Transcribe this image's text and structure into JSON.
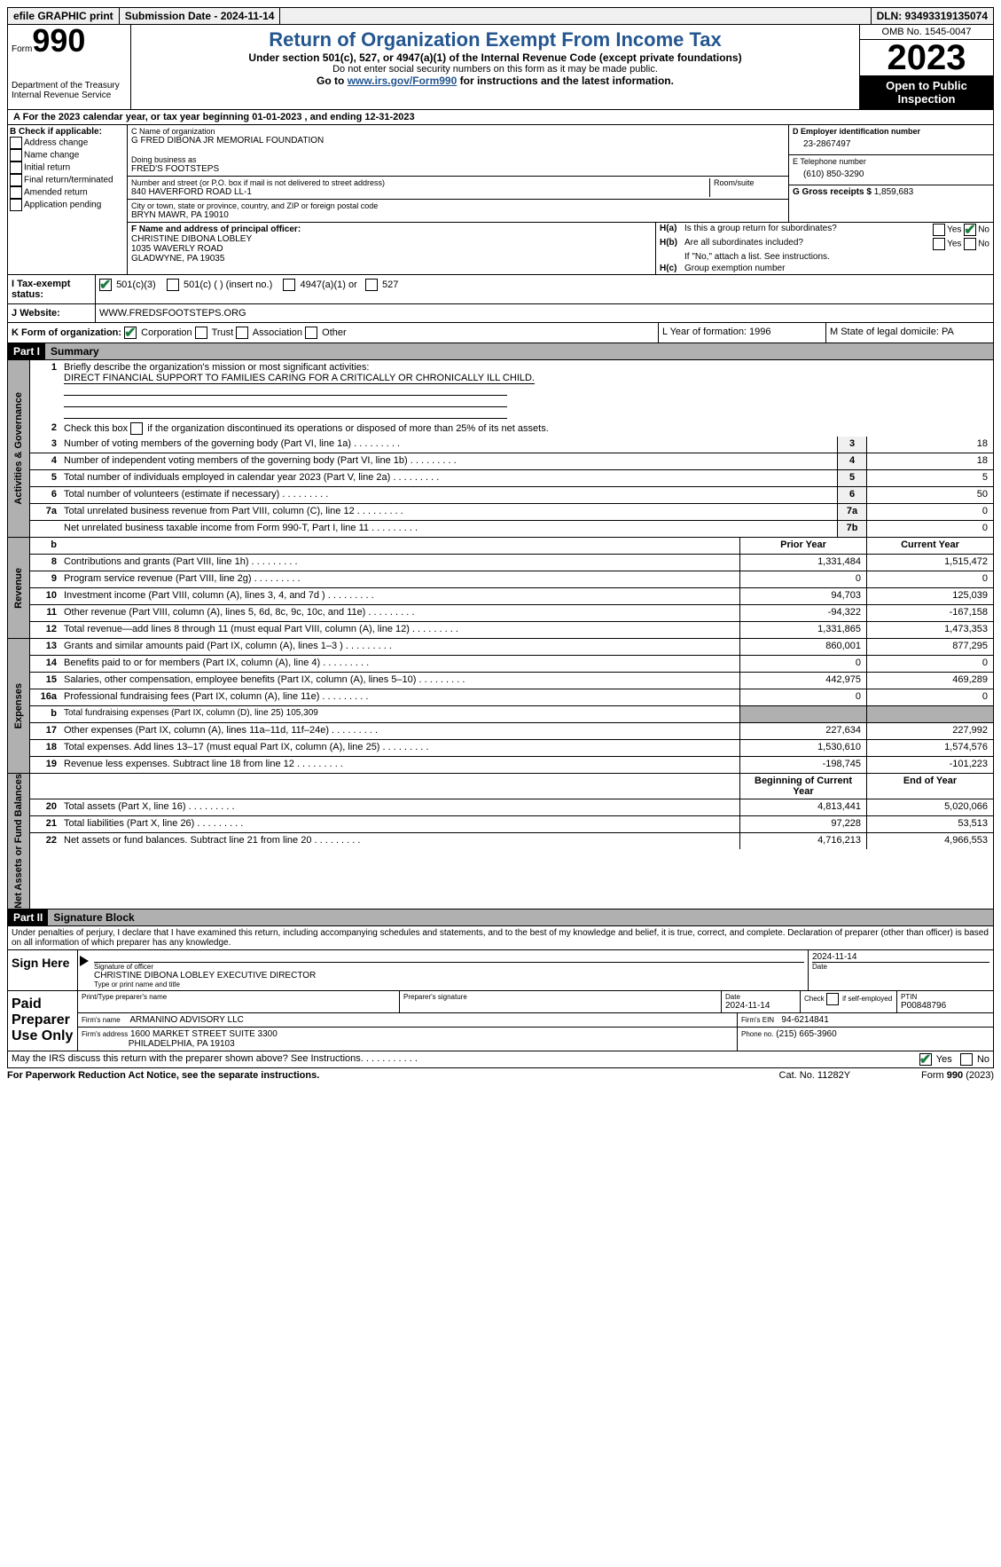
{
  "topbar": {
    "efile": "efile GRAPHIC print",
    "submission_label": "Submission Date - 2024-11-14",
    "dln_label": "DLN: 93493319135074"
  },
  "header": {
    "form_word": "Form",
    "form_number": "990",
    "dept": "Department of the Treasury Internal Revenue Service",
    "title": "Return of Organization Exempt From Income Tax",
    "subtitle": "Under section 501(c), 527, or 4947(a)(1) of the Internal Revenue Code (except private foundations)",
    "public_note": "Do not enter social security numbers on this form as it may be made public.",
    "goto_prefix": "Go to ",
    "goto_link": "www.irs.gov/Form990",
    "goto_suffix": " for instructions and the latest information.",
    "omb": "OMB No. 1545-0047",
    "year": "2023",
    "open": "Open to Public Inspection"
  },
  "line_a": "For the 2023 calendar year, or tax year beginning 01-01-2023   , and ending 12-31-2023",
  "b": {
    "label": "B Check if applicable:",
    "addr": "Address change",
    "name": "Name change",
    "initial": "Initial return",
    "final": "Final return/terminated",
    "amended": "Amended return",
    "app": "Application pending"
  },
  "c": {
    "name_label": "C Name of organization",
    "name": "G FRED DIBONA JR MEMORIAL FOUNDATION",
    "dba_label": "Doing business as",
    "dba": "FRED'S FOOTSTEPS",
    "street_label": "Number and street (or P.O. box if mail is not delivered to street address)",
    "street": "840 HAVERFORD ROAD LL-1",
    "room_label": "Room/suite",
    "city_label": "City or town, state or province, country, and ZIP or foreign postal code",
    "city": "BRYN MAWR, PA  19010"
  },
  "d": {
    "label": "D Employer identification number",
    "value": "23-2867497"
  },
  "e": {
    "label": "E Telephone number",
    "value": "(610) 850-3290"
  },
  "g": {
    "label": "G Gross receipts $",
    "value": "1,859,683"
  },
  "f": {
    "label": "F  Name and address of principal officer:",
    "name": "CHRISTINE DIBONA LOBLEY",
    "addr1": "1035 WAVERLY ROAD",
    "addr2": "GLADWYNE, PA  19035"
  },
  "h": {
    "ha_q": "Is this a group return for subordinates?",
    "hb_q": "Are all subordinates included?",
    "hb_note": "If \"No,\" attach a list. See instructions.",
    "hc_q": "Group exemption number",
    "yes": "Yes",
    "no": "No"
  },
  "i": {
    "label": "Tax-exempt status:",
    "opt1": "501(c)(3)",
    "opt2": "501(c) (  ) (insert no.)",
    "opt3": "4947(a)(1) or",
    "opt4": "527"
  },
  "j": {
    "label": "Website:",
    "value": "WWW.FREDSFOOTSTEPS.ORG"
  },
  "k": {
    "label": "K Form of organization:",
    "corp": "Corporation",
    "trust": "Trust",
    "assoc": "Association",
    "other": "Other"
  },
  "l": {
    "text": "L Year of formation: 1996"
  },
  "m": {
    "text": "M State of legal domicile: PA"
  },
  "part1": {
    "header": "Part I",
    "title": "Summary"
  },
  "governance": {
    "tab": "Activities & Governance",
    "line1_label": "Briefly describe the organization's mission or most significant activities:",
    "line1_value": "DIRECT FINANCIAL SUPPORT TO FAMILIES CARING FOR A CRITICALLY OR CHRONICALLY ILL CHILD.",
    "line2": "Check this box    if the organization discontinued its operations or disposed of more than 25% of its net assets.",
    "rows": [
      {
        "n": "3",
        "d": "Number of voting members of the governing body (Part VI, line 1a)",
        "c": "3",
        "v": "18"
      },
      {
        "n": "4",
        "d": "Number of independent voting members of the governing body (Part VI, line 1b)",
        "c": "4",
        "v": "18"
      },
      {
        "n": "5",
        "d": "Total number of individuals employed in calendar year 2023 (Part V, line 2a)",
        "c": "5",
        "v": "5"
      },
      {
        "n": "6",
        "d": "Total number of volunteers (estimate if necessary)",
        "c": "6",
        "v": "50"
      },
      {
        "n": "7a",
        "d": "Total unrelated business revenue from Part VIII, column (C), line 12",
        "c": "7a",
        "v": "0"
      },
      {
        "n": "",
        "d": "Net unrelated business taxable income from Form 990-T, Part I, line 11",
        "c": "7b",
        "v": "0"
      }
    ]
  },
  "revenue": {
    "tab": "Revenue",
    "hdr_prior": "Prior Year",
    "hdr_current": "Current Year",
    "rows": [
      {
        "n": "8",
        "d": "Contributions and grants (Part VIII, line 1h)",
        "p": "1,331,484",
        "c": "1,515,472"
      },
      {
        "n": "9",
        "d": "Program service revenue (Part VIII, line 2g)",
        "p": "0",
        "c": "0"
      },
      {
        "n": "10",
        "d": "Investment income (Part VIII, column (A), lines 3, 4, and 7d )",
        "p": "94,703",
        "c": "125,039"
      },
      {
        "n": "11",
        "d": "Other revenue (Part VIII, column (A), lines 5, 6d, 8c, 9c, 10c, and 11e)",
        "p": "-94,322",
        "c": "-167,158"
      },
      {
        "n": "12",
        "d": "Total revenue—add lines 8 through 11 (must equal Part VIII, column (A), line 12)",
        "p": "1,331,865",
        "c": "1,473,353"
      }
    ]
  },
  "expenses": {
    "tab": "Expenses",
    "line_b": "Total fundraising expenses (Part IX, column (D), line 25) 105,309",
    "rows": [
      {
        "n": "13",
        "d": "Grants and similar amounts paid (Part IX, column (A), lines 1–3 )",
        "p": "860,001",
        "c": "877,295"
      },
      {
        "n": "14",
        "d": "Benefits paid to or for members (Part IX, column (A), line 4)",
        "p": "0",
        "c": "0"
      },
      {
        "n": "15",
        "d": "Salaries, other compensation, employee benefits (Part IX, column (A), lines 5–10)",
        "p": "442,975",
        "c": "469,289"
      },
      {
        "n": "16a",
        "d": "Professional fundraising fees (Part IX, column (A), line 11e)",
        "p": "0",
        "c": "0"
      },
      {
        "n": "17",
        "d": "Other expenses (Part IX, column (A), lines 11a–11d, 11f–24e)",
        "p": "227,634",
        "c": "227,992"
      },
      {
        "n": "18",
        "d": "Total expenses. Add lines 13–17 (must equal Part IX, column (A), line 25)",
        "p": "1,530,610",
        "c": "1,574,576"
      },
      {
        "n": "19",
        "d": "Revenue less expenses. Subtract line 18 from line 12",
        "p": "-198,745",
        "c": "-101,223"
      }
    ]
  },
  "netassets": {
    "tab": "Net Assets or Fund Balances",
    "hdr_begin": "Beginning of Current Year",
    "hdr_end": "End of Year",
    "rows": [
      {
        "n": "20",
        "d": "Total assets (Part X, line 16)",
        "p": "4,813,441",
        "c": "5,020,066"
      },
      {
        "n": "21",
        "d": "Total liabilities (Part X, line 26)",
        "p": "97,228",
        "c": "53,513"
      },
      {
        "n": "22",
        "d": "Net assets or fund balances. Subtract line 21 from line 20",
        "p": "4,716,213",
        "c": "4,966,553"
      }
    ]
  },
  "part2": {
    "header": "Part II",
    "title": "Signature Block",
    "declare": "Under penalties of perjury, I declare that I have examined this return, including accompanying schedules and statements, and to the best of my knowledge and belief, it is true, correct, and complete. Declaration of preparer (other than officer) is based on all information of which preparer has any knowledge."
  },
  "sign": {
    "label": "Sign Here",
    "sig_label": "Signature of officer",
    "date_label": "Date",
    "date": "2024-11-14",
    "officer": "CHRISTINE DIBONA LOBLEY  EXECUTIVE DIRECTOR",
    "type_label": "Type or print name and title"
  },
  "paid": {
    "label": "Paid Preparer Use Only",
    "prep_name_label": "Print/Type preparer's name",
    "prep_sig_label": "Preparer's signature",
    "prep_date_label": "Date",
    "prep_date": "2024-11-14",
    "self_label": "Check    if self-employed",
    "ptin_label": "PTIN",
    "ptin": "P00848796",
    "firm_name_label": "Firm's name",
    "firm_name": "ARMANINO ADVISORY LLC",
    "firm_ein_label": "Firm's EIN",
    "firm_ein": "94-6214841",
    "firm_addr_label": "Firm's address",
    "firm_addr1": "1600 MARKET STREET SUITE 3300",
    "firm_addr2": "PHILADELPHIA, PA  19103",
    "phone_label": "Phone no.",
    "phone": "(215) 665-3960"
  },
  "discuss": "May the IRS discuss this return with the preparer shown above? See Instructions.",
  "footer": {
    "left": "For Paperwork Reduction Act Notice, see the separate instructions.",
    "center": "Cat. No. 11282Y",
    "right": "Form 990 (2023)"
  }
}
